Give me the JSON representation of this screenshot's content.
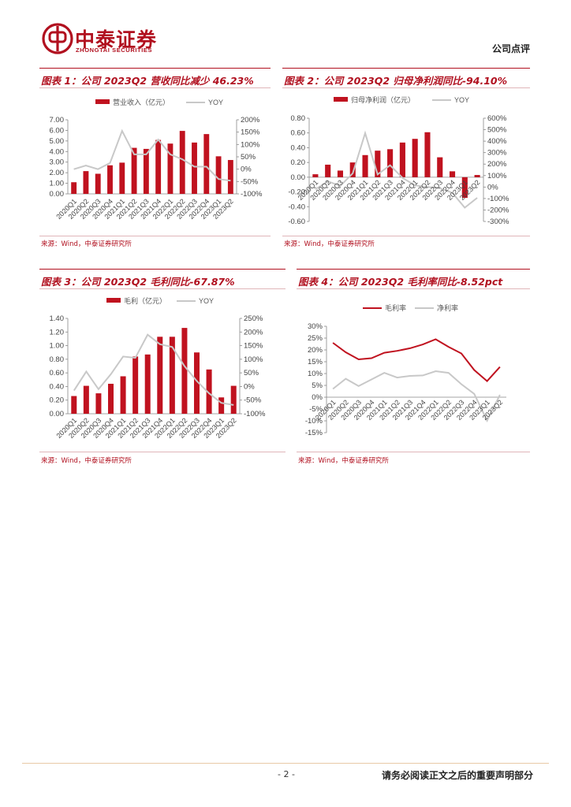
{
  "header": {
    "logo_cn": "中泰证券",
    "logo_en": "ZHONGTAI SECURITIES",
    "doc_type": "公司点评"
  },
  "footer": {
    "page": "- 2 -",
    "disclaimer": "请务必阅读正文之后的重要声明部分"
  },
  "colors": {
    "bar": "#c0121f",
    "line_gray": "#c8c8c8",
    "accent": "#b1101f"
  },
  "figures": [
    {
      "title": "图表 1：公司 2023Q2 营收同比减少 46.23%",
      "source": "来源：Wind，中泰证券研究所",
      "chart_data": {
        "type": "bar",
        "categories": [
          "2020Q1",
          "2020Q2",
          "2020Q3",
          "2020Q4",
          "2021Q1",
          "2021Q2",
          "2021Q3",
          "2021Q4",
          "2022Q1",
          "2022Q2",
          "2022Q3",
          "2022Q4",
          "2023Q1",
          "2023Q2"
        ],
        "series": [
          {
            "name": "营业收入（亿元）",
            "kind": "bar",
            "axis": "left",
            "values": [
              1.1,
              2.15,
              1.9,
              2.7,
              2.95,
              4.35,
              4.25,
              5.1,
              4.75,
              5.95,
              4.85,
              5.65,
              3.55,
              3.2
            ]
          },
          {
            "name": "YOY",
            "kind": "line",
            "axis": "right",
            "values": [
              0,
              15,
              0,
              25,
              155,
              60,
              60,
              120,
              60,
              40,
              10,
              10,
              -40,
              -46.23
            ]
          }
        ],
        "y_left": {
          "min": 0,
          "max": 7,
          "step": 1,
          "ticks": [
            "0.00",
            "1.00",
            "2.00",
            "3.00",
            "4.00",
            "5.00",
            "6.00",
            "7.00"
          ]
        },
        "y_right": {
          "min": -100,
          "max": 200,
          "step": 50,
          "ticks": [
            "-100%",
            "-50%",
            "0%",
            "50%",
            "100%",
            "150%",
            "200%"
          ]
        },
        "legend": "top-center",
        "grid": false
      }
    },
    {
      "title": "图表 2：公司 2023Q2 归母净利润同比-94.10%",
      "source": "来源：Wind，中泰证券研究所",
      "chart_data": {
        "type": "bar",
        "categories": [
          "2020Q1",
          "2020Q2",
          "2020Q3",
          "2020Q4",
          "2021Q1",
          "2021Q2",
          "2021Q3",
          "2021Q4",
          "2022Q1",
          "2022Q2",
          "2022Q3",
          "2022Q4",
          "2023Q1",
          "2023Q2"
        ],
        "series": [
          {
            "name": "归母净利润（亿元）",
            "kind": "bar",
            "axis": "left",
            "values": [
              0.04,
              0.17,
              0.09,
              0.2,
              0.3,
              0.36,
              0.38,
              0.47,
              0.52,
              0.61,
              0.27,
              0.08,
              -0.28,
              0.03
            ]
          },
          {
            "name": "YOY",
            "kind": "line",
            "axis": "right",
            "values": [
              -20,
              50,
              10,
              120,
              470,
              110,
              190,
              80,
              15,
              0,
              -10,
              -50,
              -180,
              -94.1
            ]
          }
        ],
        "y_left": {
          "min": -0.6,
          "max": 0.8,
          "step": 0.2,
          "ticks": [
            "-0.60",
            "-0.40",
            "-0.20",
            "0.00",
            "0.20",
            "0.40",
            "0.60",
            "0.80"
          ]
        },
        "y_right": {
          "min": -300,
          "max": 600,
          "step": 100,
          "ticks": [
            "-300%",
            "-200%",
            "-100%",
            "0%",
            "100%",
            "200%",
            "300%",
            "400%",
            "500%",
            "600%"
          ]
        },
        "legend": "top-center",
        "grid": false
      }
    },
    {
      "title": "图表 3：公司 2023Q2 毛利同比-67.87%",
      "source": "来源：Wind，中泰证券研究所",
      "chart_data": {
        "type": "bar",
        "categories": [
          "2020Q1",
          "2020Q2",
          "2020Q3",
          "2020Q4",
          "2021Q1",
          "2021Q2",
          "2021Q3",
          "2021Q4",
          "2022Q1",
          "2022Q2",
          "2022Q3",
          "2022Q4",
          "2023Q1",
          "2023Q2"
        ],
        "series": [
          {
            "name": "毛利（亿元）",
            "kind": "bar",
            "axis": "left",
            "values": [
              0.26,
              0.41,
              0.3,
              0.44,
              0.55,
              0.84,
              0.87,
              1.13,
              1.13,
              1.26,
              0.9,
              0.65,
              0.24,
              0.41
            ]
          },
          {
            "name": "YOY",
            "kind": "line",
            "axis": "right",
            "values": [
              -15,
              55,
              -10,
              45,
              110,
              105,
              190,
              155,
              145,
              75,
              20,
              -25,
              -60,
              -67.87
            ]
          }
        ],
        "y_left": {
          "min": 0,
          "max": 1.4,
          "step": 0.2,
          "ticks": [
            "0.00",
            "0.20",
            "0.40",
            "0.60",
            "0.80",
            "1.00",
            "1.20",
            "1.40"
          ]
        },
        "y_right": {
          "min": -100,
          "max": 250,
          "step": 50,
          "ticks": [
            "-100%",
            "-50%",
            "0%",
            "50%",
            "100%",
            "150%",
            "200%",
            "250%"
          ]
        },
        "legend": "top-center",
        "grid": false
      }
    },
    {
      "title": "图表 4：公司 2023Q2 毛利率同比-8.52pct",
      "source": "来源：Wind，中泰证券研究所",
      "chart_data": {
        "type": "line",
        "categories": [
          "2020Q1",
          "2020Q2",
          "2020Q3",
          "2020Q4",
          "2021Q1",
          "2021Q2",
          "2021Q3",
          "2021Q4",
          "2022Q1",
          "2022Q2",
          "2022Q3",
          "2022Q4",
          "2023Q1",
          "2023Q2"
        ],
        "series": [
          {
            "name": "毛利率",
            "color": "#c0121f",
            "values": [
              23,
              19,
              16,
              16.5,
              18.8,
              19.6,
              20.7,
              22.3,
              24.5,
              21.3,
              18.5,
              11.5,
              6.8,
              12.8
            ]
          },
          {
            "name": "净利率",
            "color": "#c8c8c8",
            "values": [
              3.5,
              7.8,
              4.7,
              7.5,
              10.3,
              8.3,
              9,
              9.2,
              11,
              10.3,
              5.5,
              1.4,
              -9.9,
              1
            ]
          }
        ],
        "y_left": {
          "min": -15,
          "max": 30,
          "step": 5,
          "ticks": [
            "-15%",
            "-10%",
            "-5%",
            "0%",
            "5%",
            "10%",
            "15%",
            "20%",
            "25%",
            "30%"
          ]
        },
        "legend": "top-center",
        "grid": false
      }
    }
  ]
}
